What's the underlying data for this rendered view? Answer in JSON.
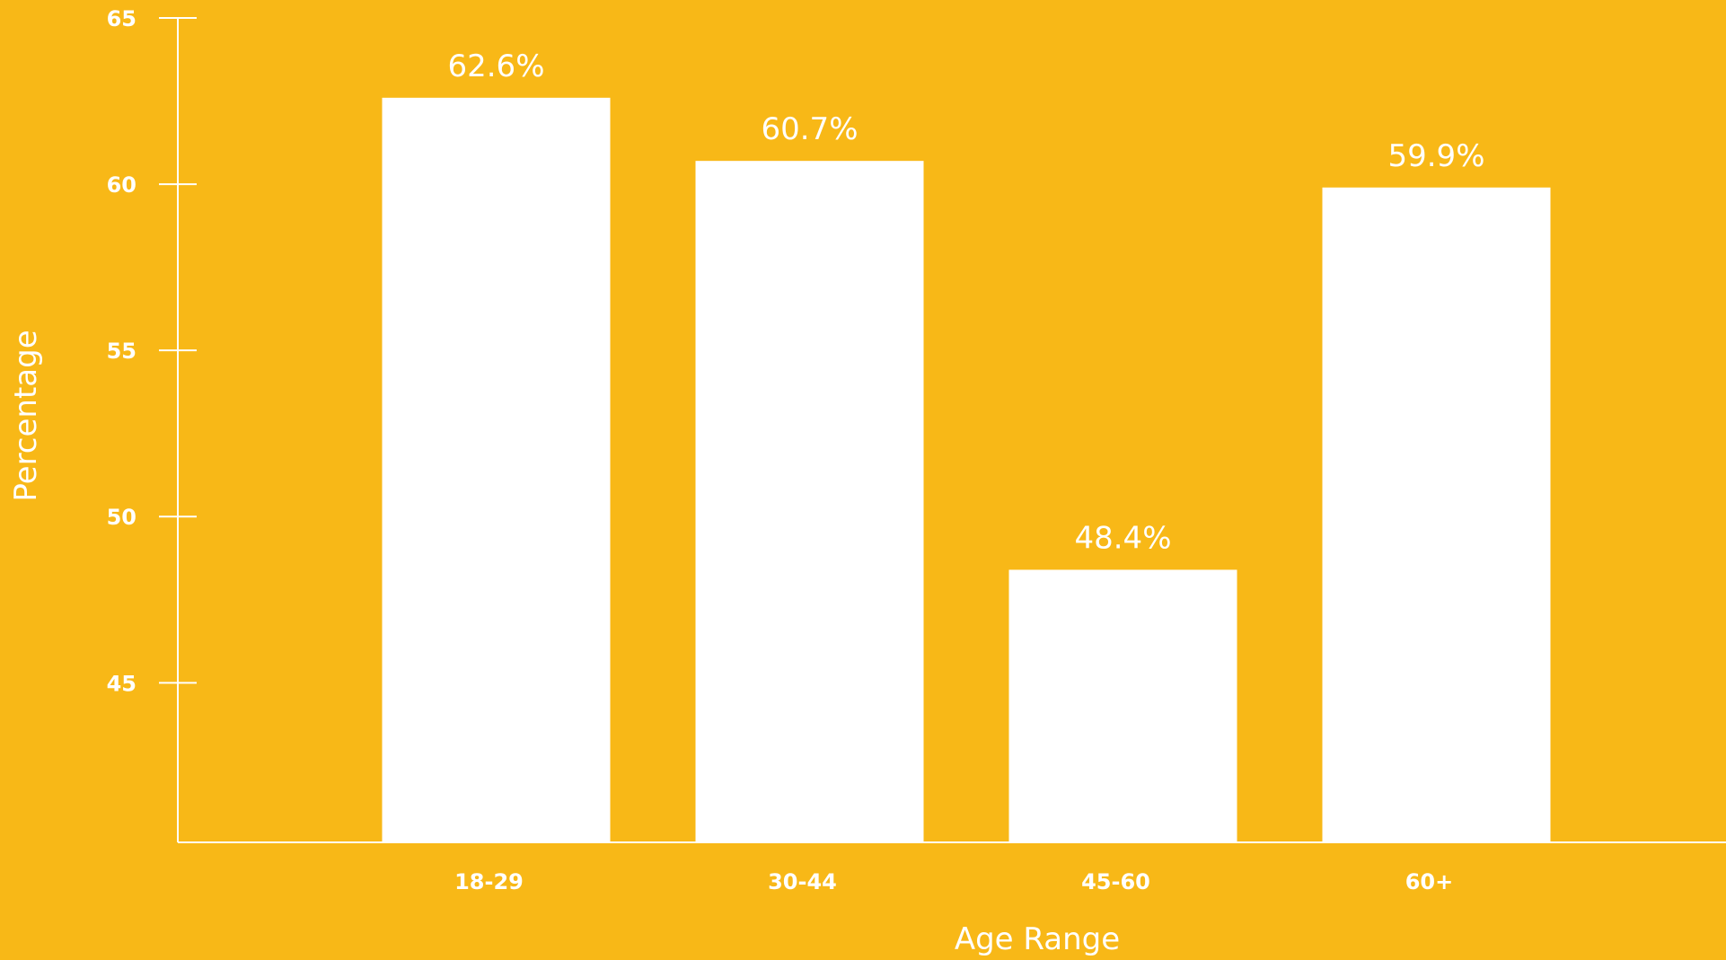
{
  "chart_data": {
    "type": "bar",
    "categories": [
      "18-29",
      "30-44",
      "45-60",
      "60+"
    ],
    "values": [
      62.6,
      60.7,
      48.4,
      59.9
    ],
    "value_labels": [
      "62.6%",
      "60.7%",
      "48.4%",
      "59.9%"
    ],
    "title": "",
    "xlabel": "Age Range",
    "ylabel": "Percentage",
    "ylim": [
      40.2,
      65
    ],
    "yticks": [
      45,
      50,
      55,
      60,
      65
    ],
    "ytick_labels": [
      "45",
      "50",
      "55",
      "60",
      "65"
    ],
    "grid": false,
    "legend": "none"
  },
  "colors": {
    "background": "#F8B817",
    "bar": "#FFFFFF",
    "text": "#FFFFFF",
    "axis": "#FFFFFF"
  }
}
